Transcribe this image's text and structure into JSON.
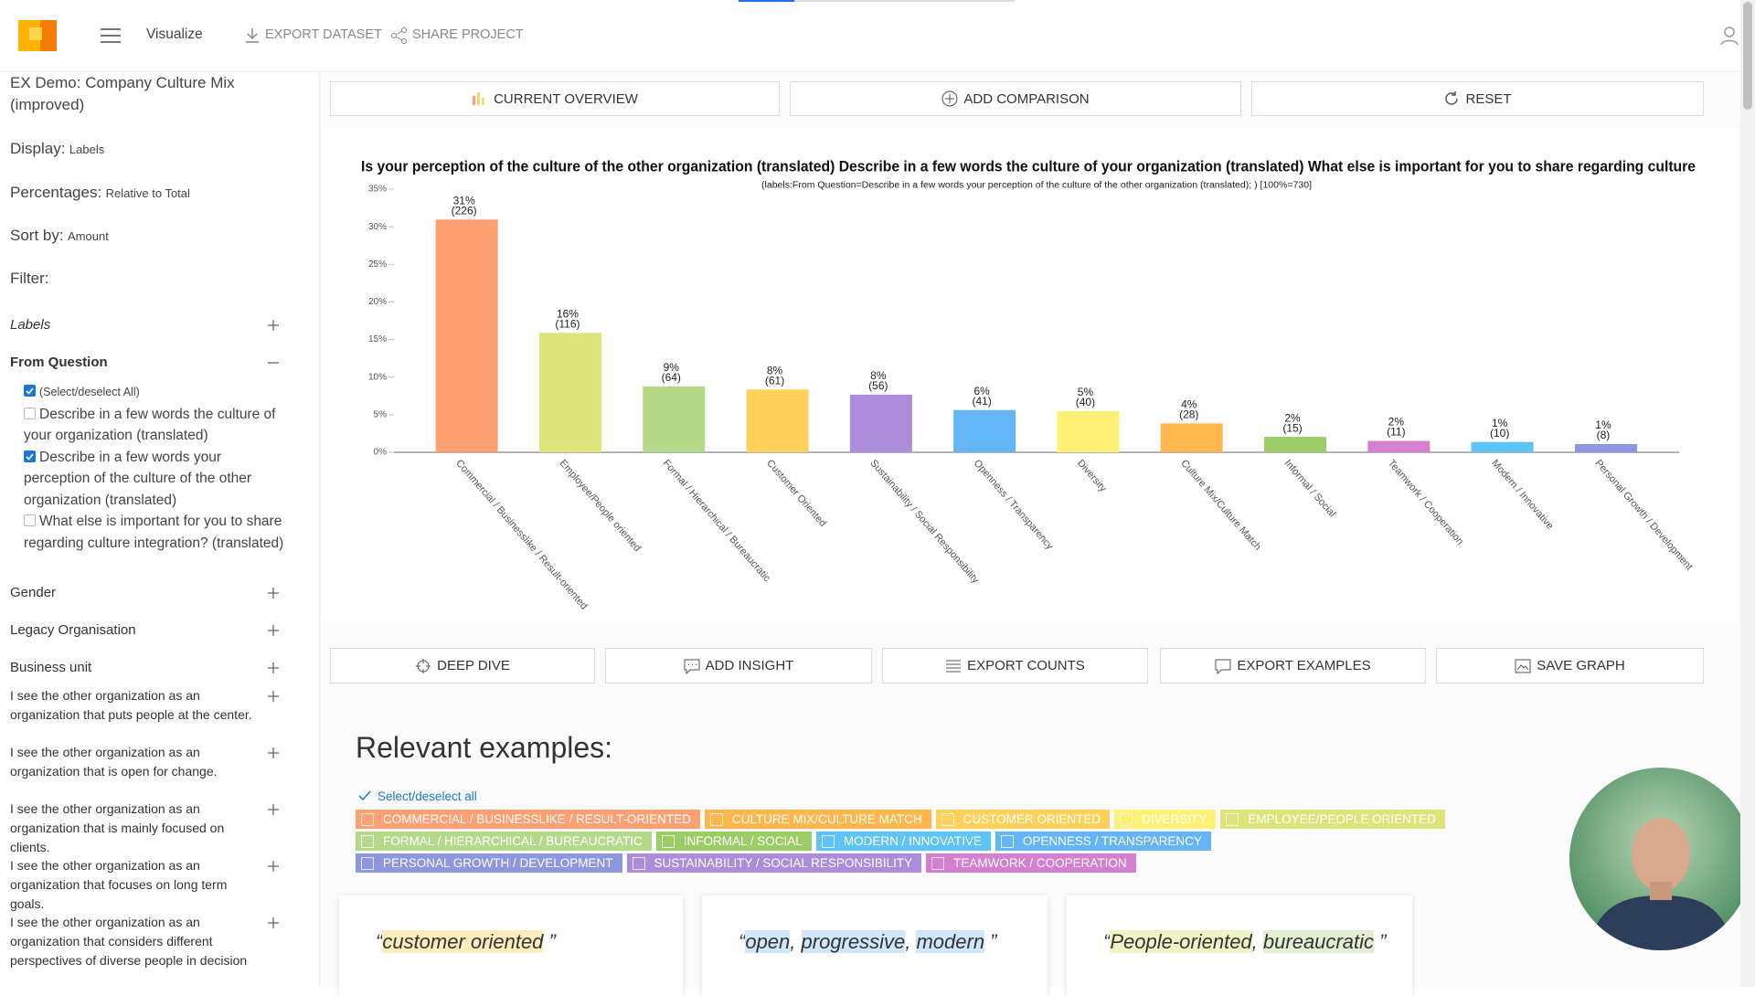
{
  "header": {
    "app_title": "Visualize",
    "links": [
      "EXPORT DATASET",
      "SHARE PROJECT"
    ]
  },
  "sidebar": {
    "project_title": "EX Demo: Company Culture Mix (improved)",
    "settings": [
      {
        "label": "Display:",
        "value": "Labels"
      },
      {
        "label": "Percentages:",
        "value": "Relative to Total"
      },
      {
        "label": "Sort by:",
        "value": "Amount"
      }
    ],
    "filter_label": "Filter:",
    "filters": [
      {
        "label": "Labels",
        "expanded": false,
        "italic": true
      },
      {
        "label": "From Question",
        "expanded": true,
        "bold": true,
        "options": [
          {
            "label": "(Select/deselect All)",
            "checked": true
          },
          {
            "label": "Describe in a few words the culture of your organization (translated)",
            "checked": false
          },
          {
            "label": "Describe in a few words your perception of the culture of the other organization (translated)",
            "checked": true
          },
          {
            "label": "What else is important for you to share regarding culture integration? (translated)",
            "checked": false
          }
        ]
      },
      {
        "label": "Gender",
        "expanded": false
      },
      {
        "label": "Legacy Organisation",
        "expanded": false
      },
      {
        "label": "Business unit",
        "expanded": false
      },
      {
        "label": "I see the other organization as an organization that puts people at the center.",
        "expanded": false
      },
      {
        "label": "I see the other organization as an organization that is open for change.",
        "expanded": false
      },
      {
        "label": "I see the other organization as an organization that is mainly focused on clients.",
        "expanded": false
      },
      {
        "label": "I see the other organization as an organization that focuses on long term goals.",
        "expanded": false
      },
      {
        "label": "I see the other organization as an organization that considers different perspectives of diverse people in decision",
        "expanded": false
      }
    ]
  },
  "toolbar": [
    "CURRENT OVERVIEW",
    "ADD COMPARISON",
    "RESET"
  ],
  "chart_data": {
    "type": "bar",
    "title": "Is your perception of the culture of the other organization (translated) Describe in a few words the culture of your organization (translated) What else is important for you to share regarding culture",
    "subtitle": "(labels:From Question=Describe in a few words your perception of the culture of the other organization (translated); ) [100%=730]",
    "categories": [
      "Commercial / Businesslike / Result-oriented",
      "Employee/People oriented",
      "Formal / Hierarchical / Bureaucratic",
      "Customer Oriented",
      "Sustainability / Social Responsibility",
      "Openness / Transparency",
      "Diversity",
      "Culture Mix/Culture Match",
      "Informal / Social",
      "Teamwork / Cooperation",
      "Modern / Innovative",
      "Personal Growth / Development"
    ],
    "values": [
      30.96,
      15.89,
      8.77,
      8.36,
      7.67,
      5.62,
      5.48,
      3.84,
      2.05,
      1.51,
      1.37,
      1.1
    ],
    "value_labels": [
      "31%",
      "16%",
      "9%",
      "8%",
      "8%",
      "6%",
      "5%",
      "4%",
      "2%",
      "2%",
      "1%",
      "1%"
    ],
    "count_labels": [
      "(226)",
      "(116)",
      "(64)",
      "(61)",
      "(56)",
      "(41)",
      "(40)",
      "(28)",
      "(15)",
      "(11)",
      "(10)",
      "(8)"
    ],
    "colors": [
      "#ffa073",
      "#dde57a",
      "#b5d98a",
      "#ffd05a",
      "#ab8ddc",
      "#64b5f6",
      "#fff176",
      "#ffb74d",
      "#9ccc65",
      "#d57fd0",
      "#5ec4f5",
      "#8c97e0"
    ],
    "ylim": [
      0,
      35
    ],
    "yticks": [
      {
        "value": 0,
        "label": "0%"
      },
      {
        "value": 5,
        "label": "5%"
      },
      {
        "value": 10,
        "label": "10%"
      },
      {
        "value": 15,
        "label": "15%"
      },
      {
        "value": 20,
        "label": "20%"
      },
      {
        "value": 25,
        "label": "25%"
      },
      {
        "value": 30,
        "label": "30%"
      },
      {
        "value": 35,
        "label": "35%"
      }
    ],
    "grid": false
  },
  "actions": [
    "DEEP DIVE",
    "ADD INSIGHT",
    "EXPORT COUNTS",
    "EXPORT EXAMPLES",
    "SAVE GRAPH"
  ],
  "examples": {
    "heading": "Relevant examples:",
    "select_all": "Select/deselect all",
    "tags": [
      {
        "label": "COMMERCIAL / BUSINESSLIKE / RESULT-ORIENTED",
        "color": "#ffa073"
      },
      {
        "label": "CULTURE MIX/CULTURE MATCH",
        "color": "#ffb74d"
      },
      {
        "label": "CUSTOMER ORIENTED",
        "color": "#ffd05a"
      },
      {
        "label": "DIVERSITY",
        "color": "#fff176"
      },
      {
        "label": "EMPLOYEE/PEOPLE ORIENTED",
        "color": "#dde57a"
      },
      {
        "label": "FORMAL / HIERARCHICAL / BUREAUCRATIC",
        "color": "#b5d98a"
      },
      {
        "label": "INFORMAL / SOCIAL",
        "color": "#9ccc65"
      },
      {
        "label": "MODERN / INNOVATIVE",
        "color": "#5ec4f5"
      },
      {
        "label": "OPENNESS / TRANSPARENCY",
        "color": "#64b5f6"
      },
      {
        "label": "PERSONAL GROWTH / DEVELOPMENT",
        "color": "#8c97e0"
      },
      {
        "label": "SUSTAINABILITY / SOCIAL RESPONSIBILITY",
        "color": "#ab8ddc"
      },
      {
        "label": "TEAMWORK / COOPERATION",
        "color": "#d57fd0"
      }
    ],
    "quotes": [
      [
        {
          "text": "“"
        },
        {
          "text": "customer oriented",
          "highlight": "#fdecbc"
        },
        {
          "text": " ”"
        }
      ],
      [
        {
          "text": "“"
        },
        {
          "text": "open",
          "highlight": "#cfe6fb"
        },
        {
          "text": ", "
        },
        {
          "text": "progressive",
          "highlight": "#cfe6fb"
        },
        {
          "text": ", "
        },
        {
          "text": "modern",
          "highlight": "#cfe6fb"
        },
        {
          "text": " ”"
        }
      ],
      [
        {
          "text": "“"
        },
        {
          "text": "People-oriented",
          "highlight": "#eff3c6"
        },
        {
          "text": ", "
        },
        {
          "text": "bureaucratic",
          "highlight": "#e2efd2"
        },
        {
          "text": " ”"
        }
      ]
    ]
  }
}
